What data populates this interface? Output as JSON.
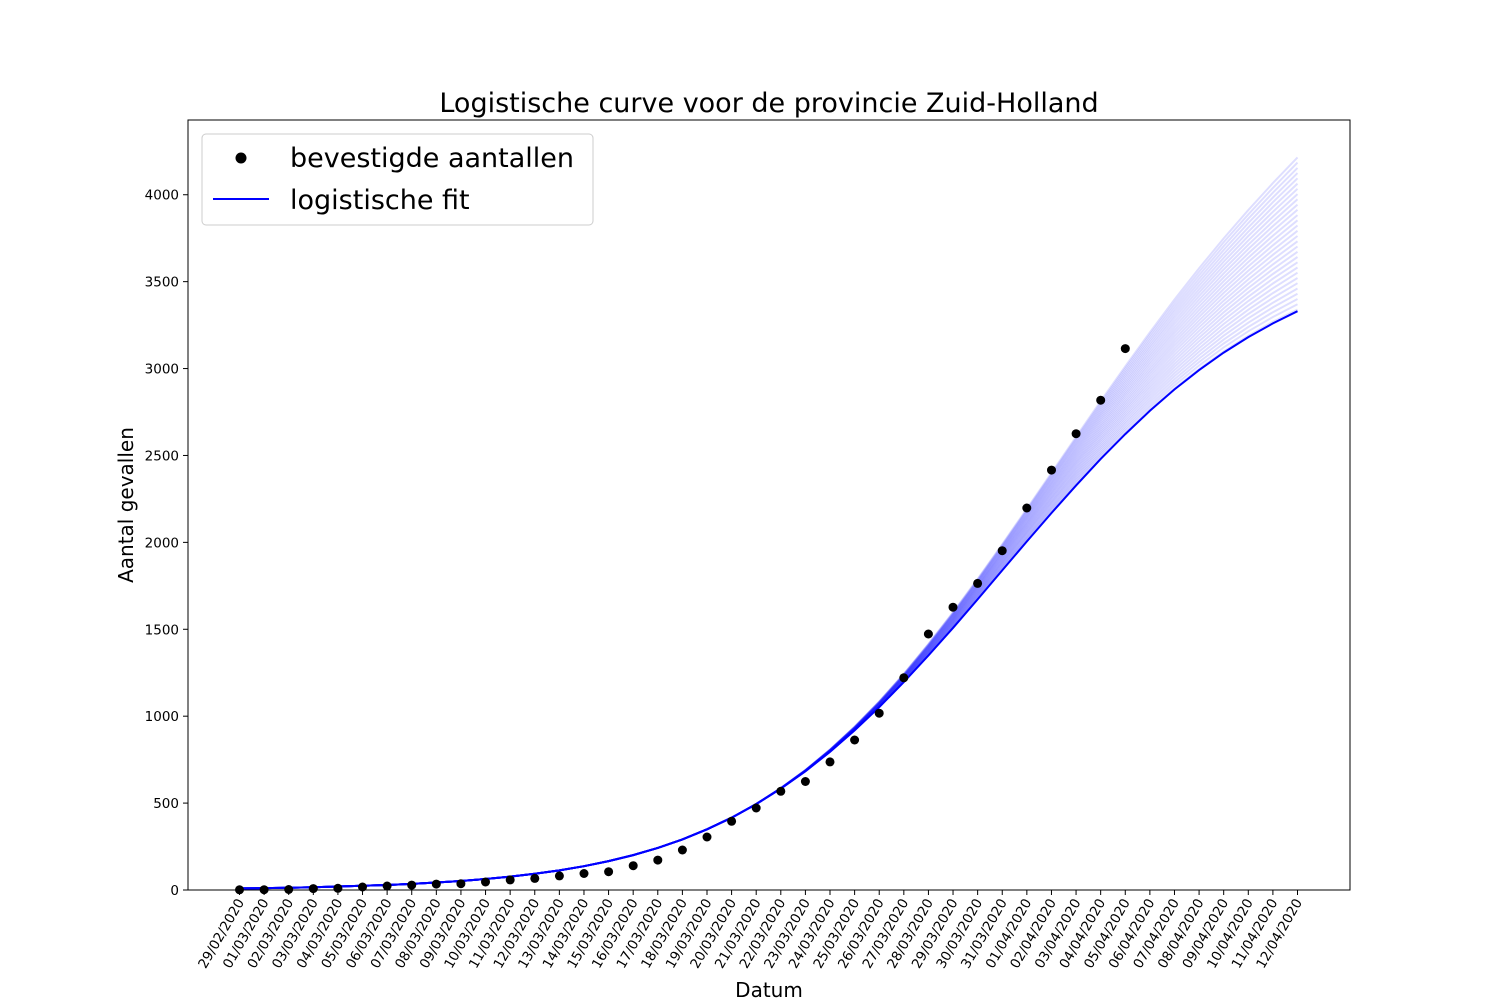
{
  "chart_data": {
    "type": "line",
    "title": "Logistische curve voor de provincie Zuid-Holland",
    "xlabel": "Datum",
    "ylabel": "Aantal gevallen",
    "ylim": [
      0,
      4430
    ],
    "y_ticks": [
      0,
      500,
      1000,
      1500,
      2000,
      2500,
      3000,
      3500,
      4000
    ],
    "x_tick_labels": [
      "29/02/2020",
      "01/03/2020",
      "02/03/2020",
      "03/03/2020",
      "04/03/2020",
      "05/03/2020",
      "06/03/2020",
      "07/03/2020",
      "08/03/2020",
      "09/03/2020",
      "10/03/2020",
      "11/03/2020",
      "12/03/2020",
      "13/03/2020",
      "14/03/2020",
      "15/03/2020",
      "16/03/2020",
      "17/03/2020",
      "18/03/2020",
      "19/03/2020",
      "20/03/2020",
      "21/03/2020",
      "22/03/2020",
      "23/03/2020",
      "24/03/2020",
      "25/03/2020",
      "26/03/2020",
      "27/03/2020",
      "28/03/2020",
      "29/03/2020",
      "30/03/2020",
      "31/03/2020",
      "01/04/2020",
      "02/04/2020",
      "03/04/2020",
      "04/04/2020",
      "05/04/2020",
      "06/04/2020",
      "07/04/2020",
      "08/04/2020",
      "09/04/2020",
      "10/04/2020",
      "11/04/2020",
      "12/04/2020"
    ],
    "grid": false,
    "legend_position": "top-left",
    "series": [
      {
        "name": "bevestigde aantallen",
        "kind": "scatter",
        "color": "#000000",
        "x": [
          "29/02/2020",
          "01/03/2020",
          "02/03/2020",
          "03/03/2020",
          "04/03/2020",
          "05/03/2020",
          "06/03/2020",
          "07/03/2020",
          "08/03/2020",
          "09/03/2020",
          "10/03/2020",
          "11/03/2020",
          "12/03/2020",
          "13/03/2020",
          "14/03/2020",
          "15/03/2020",
          "16/03/2020",
          "17/03/2020",
          "18/03/2020",
          "19/03/2020",
          "20/03/2020",
          "21/03/2020",
          "22/03/2020",
          "23/03/2020",
          "24/03/2020",
          "25/03/2020",
          "26/03/2020",
          "27/03/2020",
          "28/03/2020",
          "29/03/2020",
          "30/03/2020",
          "31/03/2020",
          "01/04/2020",
          "02/04/2020",
          "03/04/2020",
          "04/04/2020",
          "05/04/2020"
        ],
        "y": [
          1,
          2,
          3,
          8,
          10,
          17,
          23,
          28,
          34,
          36,
          46,
          58,
          67,
          81,
          95,
          105,
          140,
          172,
          230,
          305,
          395,
          472,
          568,
          624,
          737,
          863,
          1017,
          1221,
          1473,
          1627,
          1764,
          1952,
          2198,
          2416,
          2625,
          2818,
          3115
        ]
      },
      {
        "name": "logistische fit",
        "kind": "line",
        "color": "#0000ff",
        "x": [
          "29/02/2020",
          "01/03/2020",
          "02/03/2020",
          "03/03/2020",
          "04/03/2020",
          "05/03/2020",
          "06/03/2020",
          "07/03/2020",
          "08/03/2020",
          "09/03/2020",
          "10/03/2020",
          "11/03/2020",
          "12/03/2020",
          "13/03/2020",
          "14/03/2020",
          "15/03/2020",
          "16/03/2020",
          "17/03/2020",
          "18/03/2020",
          "19/03/2020",
          "20/03/2020",
          "21/03/2020",
          "22/03/2020",
          "23/03/2020",
          "24/03/2020",
          "25/03/2020",
          "26/03/2020",
          "27/03/2020",
          "28/03/2020",
          "29/03/2020",
          "30/03/2020",
          "31/03/2020",
          "01/04/2020",
          "02/04/2020",
          "03/04/2020",
          "04/04/2020",
          "05/04/2020",
          "06/04/2020",
          "07/04/2020",
          "08/04/2020",
          "09/04/2020",
          "10/04/2020",
          "11/04/2020",
          "12/04/2020"
        ],
        "y": [
          9,
          11,
          13,
          16,
          20,
          24,
          29,
          35,
          43,
          52,
          63,
          77,
          93,
          113,
          137,
          166,
          201,
          242,
          291,
          349,
          416,
          494,
          583,
          683,
          795,
          918,
          1052,
          1196,
          1349,
          1508,
          1672,
          1839,
          2005,
          2169,
          2328,
          2480,
          2623,
          2757,
          2880,
          2991,
          3092,
          3181,
          3260,
          3330
        ]
      }
    ],
    "bootstrap_band": {
      "color": "#0000ff",
      "count": 30,
      "end_range": [
        3340,
        4215
      ]
    }
  }
}
